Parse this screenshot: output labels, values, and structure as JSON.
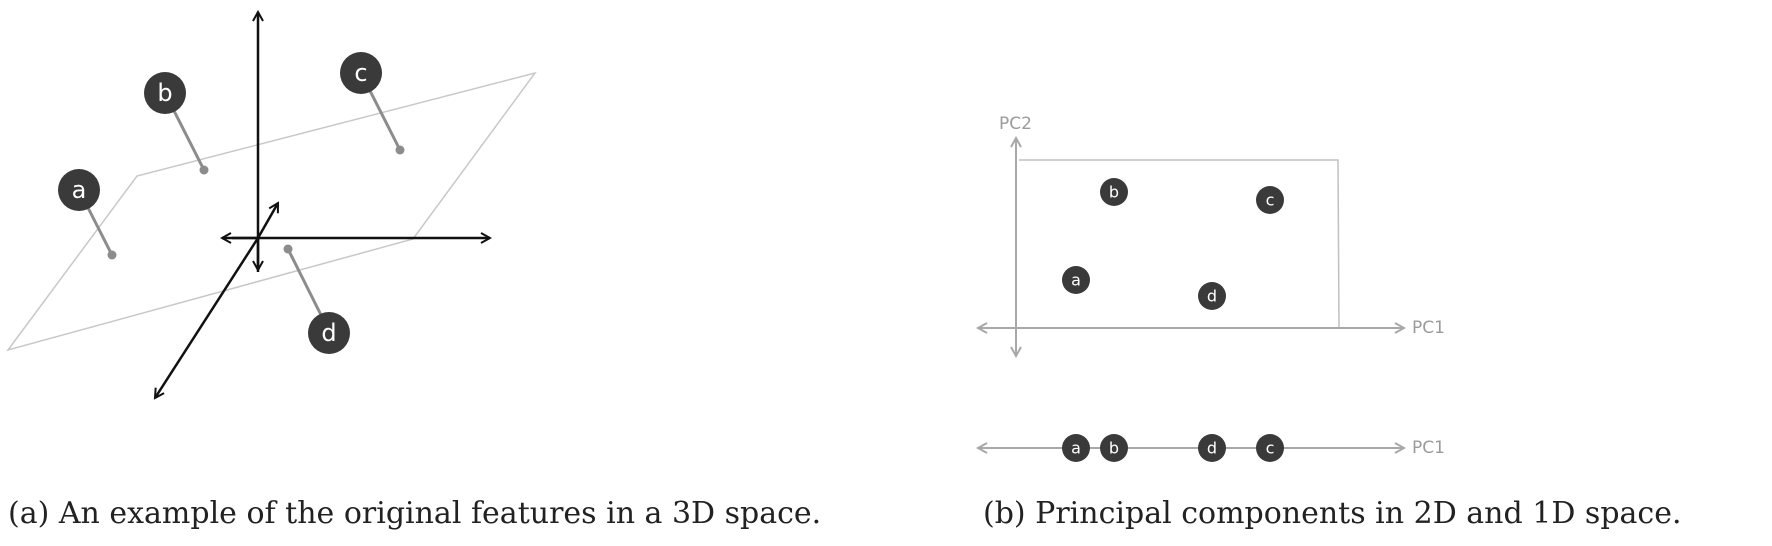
{
  "captions": {
    "a": "(a) An example of the original features in a 3D space.",
    "b": "(b) Principal components in 2D and 1D space."
  },
  "panel_a": {
    "points": [
      "a",
      "b",
      "c",
      "d"
    ]
  },
  "panel_b": {
    "axes": {
      "pc1": "PC1",
      "pc2": "PC2",
      "pc1_1d": "PC1"
    },
    "points_2d": [
      "b",
      "c",
      "a",
      "d"
    ],
    "points_1d": [
      "a",
      "b",
      "d",
      "c"
    ]
  },
  "colors": {
    "node": "#3a3a3a",
    "axis_gray": "#a8a8a8",
    "plane": "#c8c8c8",
    "dark_axis": "#111111",
    "stem": "#8c8c8c"
  }
}
